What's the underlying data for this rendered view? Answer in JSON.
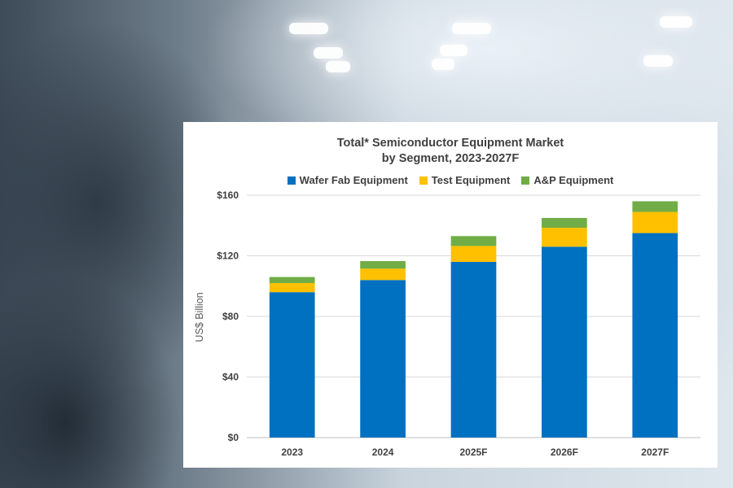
{
  "chart_data": {
    "type": "bar",
    "stacked": true,
    "title_line1": "Total* Semiconductor Equipment Market",
    "title_line2": "by Segment, 2023-2027F",
    "ylabel": "US$ Billion",
    "xlabel": "",
    "categories": [
      "2023",
      "2024",
      "2025F",
      "2026F",
      "2027F"
    ],
    "ylim": [
      0,
      160
    ],
    "yticks": [
      0,
      40,
      80,
      120,
      160
    ],
    "ytick_labels": [
      "$0",
      "$40",
      "$80",
      "$120",
      "$160"
    ],
    "grid": true,
    "legend_position": "top",
    "series": [
      {
        "name": "Wafer Fab Equipment",
        "color": "#0070C0",
        "values": [
          96,
          104,
          116,
          126,
          135
        ]
      },
      {
        "name": "Test Equipment",
        "color": "#FFC000",
        "values": [
          6,
          7.5,
          10.5,
          12.5,
          14
        ]
      },
      {
        "name": "A&P Equipment",
        "color": "#70AD47",
        "values": [
          4,
          5,
          6.5,
          6.5,
          7
        ]
      }
    ]
  }
}
